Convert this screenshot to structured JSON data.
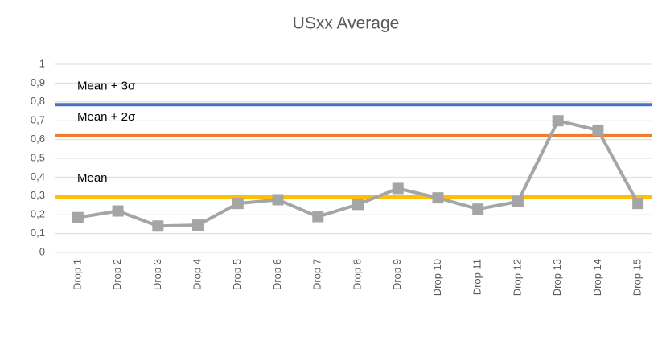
{
  "chart_data": {
    "type": "line",
    "title": "USxx Average",
    "categories": [
      "Drop 1",
      "Drop 2",
      "Drop 3",
      "Drop 4",
      "Drop 5",
      "Drop 6",
      "Drop 7",
      "Drop 8",
      "Drop 9",
      "Drop 10",
      "Drop 11",
      "Drop 12",
      "Drop 13",
      "Drop 14",
      "Drop 15"
    ],
    "series": [
      {
        "color": "#a5a5a5",
        "marker": "square",
        "values": [
          0.185,
          0.22,
          0.14,
          0.145,
          0.26,
          0.28,
          0.19,
          0.255,
          0.34,
          0.29,
          0.23,
          0.27,
          0.7,
          0.65,
          0.26
        ]
      },
      {
        "name": "Mean",
        "color": "#ffc000",
        "values": [
          0.295,
          0.295,
          0.295,
          0.295,
          0.295,
          0.295,
          0.295,
          0.295,
          0.295,
          0.295,
          0.295,
          0.295,
          0.295,
          0.295,
          0.295
        ]
      },
      {
        "name": "Mean + 2σ",
        "color": "#ed7d31",
        "values": [
          0.62,
          0.62,
          0.62,
          0.62,
          0.62,
          0.62,
          0.62,
          0.62,
          0.62,
          0.62,
          0.62,
          0.62,
          0.62,
          0.62,
          0.62
        ]
      },
      {
        "name": "Mean + 3σ",
        "color": "#4472c4",
        "values": [
          0.785,
          0.785,
          0.785,
          0.785,
          0.785,
          0.785,
          0.785,
          0.785,
          0.785,
          0.785,
          0.785,
          0.785,
          0.785,
          0.785,
          0.785
        ]
      }
    ],
    "ylim": [
      0,
      1
    ],
    "yticks": [
      0,
      {
        "value": 0.1,
        "label": "0,1"
      },
      {
        "value": 0.2,
        "label": "0,2"
      },
      {
        "value": 0.3,
        "label": "0,3"
      },
      {
        "value": 0.4,
        "label": "0,4"
      },
      {
        "value": 0.5,
        "label": "0,5"
      },
      {
        "value": 0.6,
        "label": "0,6"
      },
      {
        "value": 0.7,
        "label": "0,7"
      },
      {
        "value": 0.8,
        "label": "0,8"
      },
      {
        "value": 0.9,
        "label": "0,9"
      },
      1
    ],
    "grid": true
  }
}
